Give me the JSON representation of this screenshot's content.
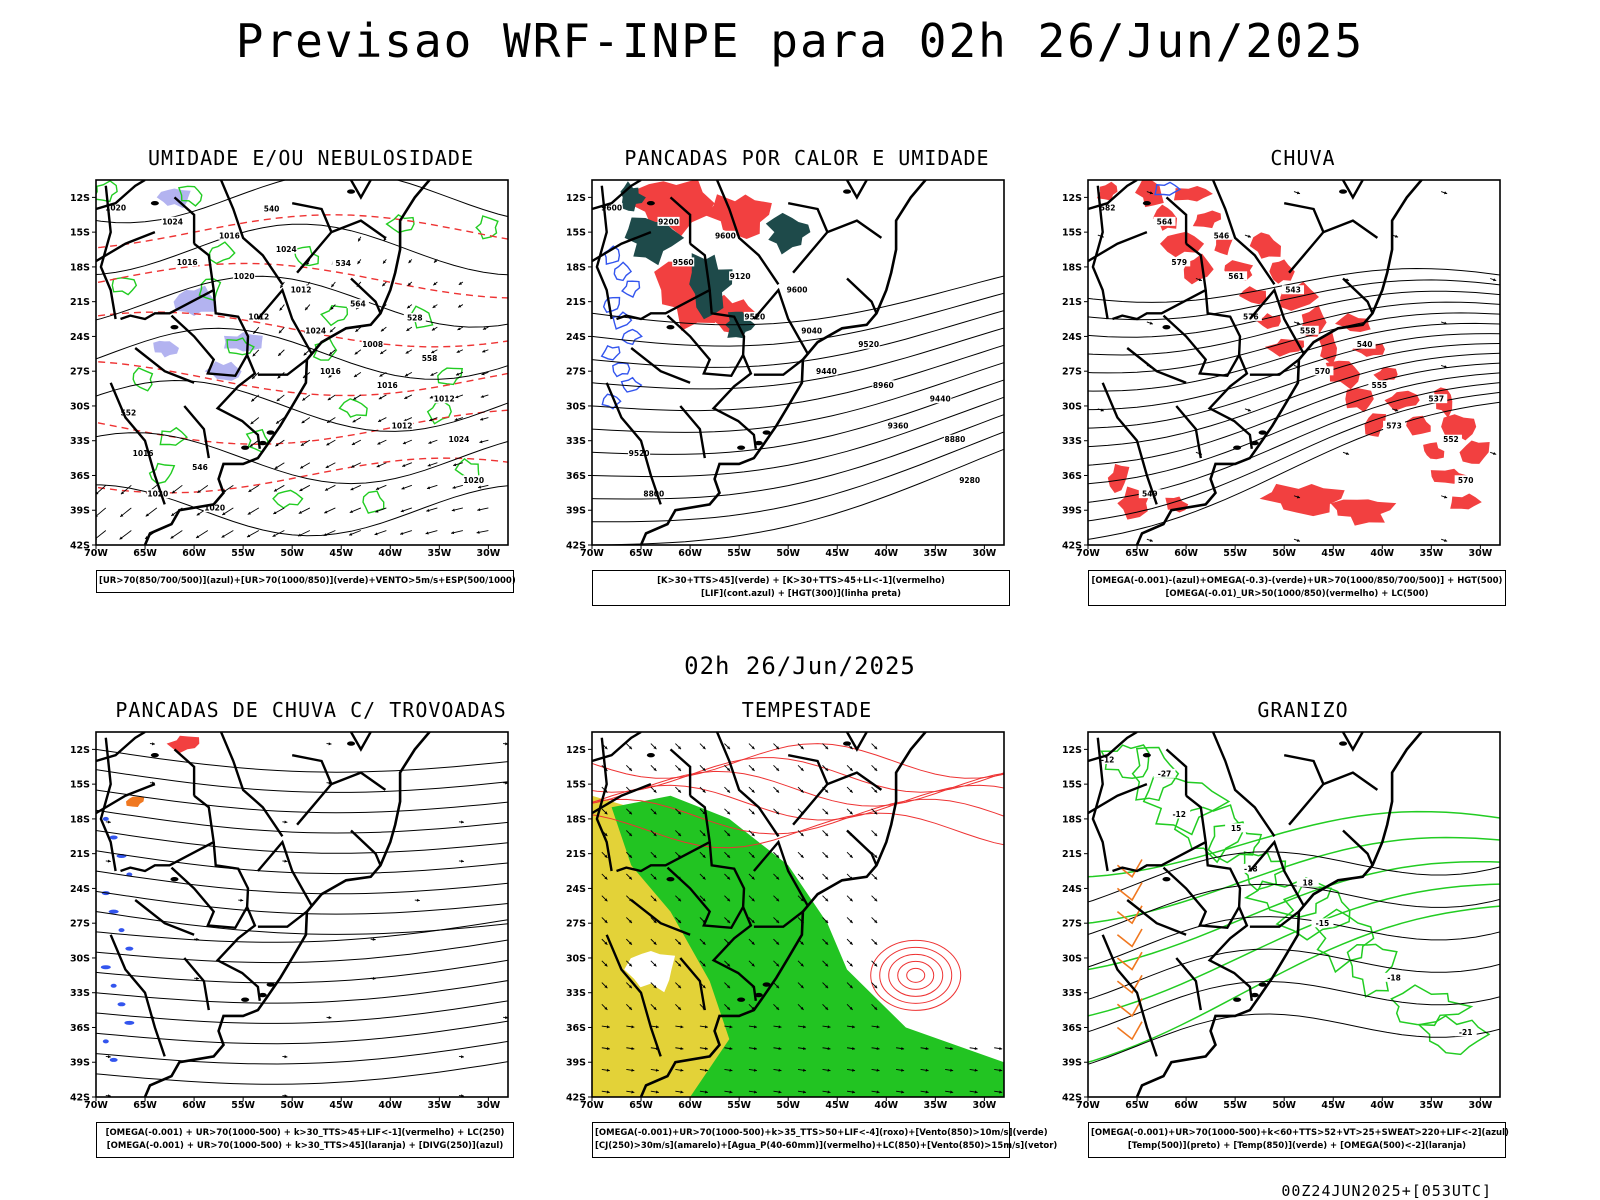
{
  "page": {
    "title": "Previsao WRF-INPE  para 02h 26/Jun/2025",
    "mid_title": "02h 26/Jun/2025",
    "footer": "00Z24JUN2025+[053UTC]"
  },
  "axes": {
    "lat_labels": [
      "12S",
      "15S",
      "18S",
      "21S",
      "24S",
      "27S",
      "30S",
      "33S",
      "36S",
      "39S",
      "42S"
    ],
    "lon_labels": [
      "70W",
      "65W",
      "60W",
      "55W",
      "50W",
      "45W",
      "40W",
      "35W",
      "30W"
    ]
  },
  "colors": {
    "humidity_blue": "#b3b3f0",
    "humidity_green": "#22cc22",
    "red_fill": "#f24040",
    "dark_teal": "#1e4a4a",
    "blue_contour": "#3355ee",
    "yellow_fill": "#e3d238",
    "green_fill": "#22c422",
    "orange": "#f07820",
    "red_contour": "#ee3333"
  },
  "panels": [
    {
      "id": "umidade",
      "title": "UMIDADE E/OU NEBULOSIDADE",
      "legend": [
        "[UR>70(850/700/500)](azul)+[UR>70(1000/850)](verde)+VENTO>5m/s+ESP(500/1000)"
      ],
      "contour_labels": [
        "1020",
        "1016",
        "1012",
        "1016",
        "1012",
        "1020",
        "1024",
        "1020",
        "1024",
        "1016",
        "1024",
        "1020",
        "1016",
        "1012",
        "1008",
        "1012",
        "1016",
        "1020",
        "1024",
        "564",
        "558",
        "552",
        "546",
        "540",
        "534",
        "528"
      ]
    },
    {
      "id": "pancadas_calor",
      "title": "PANCADAS POR CALOR E UMIDADE",
      "legend": [
        "[K>30+TTS>45](verde) + [K>30+TTS>45+LI<-1](vermelho)",
        "[LIF](cont.azul) + [HGT(300)](linha preta)"
      ],
      "contour_labels": [
        "9600",
        "9560",
        "9520",
        "9440",
        "9360",
        "9280",
        "9200",
        "9120",
        "9040",
        "8960",
        "8880",
        "8800",
        "9600",
        "9600",
        "9520",
        "9440",
        "9520"
      ]
    },
    {
      "id": "chuva",
      "title": "CHUVA",
      "legend": [
        "[OMEGA(-0.001)-(azul)+OMEGA(-0.3)-(verde)+UR>70(1000/850/700/500)] + HGT(500)",
        "[OMEGA(-0.01)_UR>50(1000/850)(vermelho) + LC(500)"
      ],
      "contour_labels": [
        "582",
        "579",
        "576",
        "570",
        "573",
        "570",
        "564",
        "561",
        "558",
        "555",
        "552",
        "549",
        "546",
        "543",
        "540",
        "537"
      ]
    },
    {
      "id": "pancadas_trovoadas",
      "title": "PANCADAS DE CHUVA C/ TROVOADAS",
      "legend": [
        "[OMEGA(-0.001) + UR>70(1000-500) + k>30_TTS>45+LIF<-1](vermelho) + LC(250)",
        "[OMEGA(-0.001) + UR>70(1000-500) + k>30_TTS>45](laranja) + [DIVG(250)](azul)"
      ],
      "contour_labels": []
    },
    {
      "id": "tempestade",
      "title": "TEMPESTADE",
      "legend": [
        "[OMEGA(-0.001)+UR>70(1000-500)+k>35_TTS>50+LIF<-4](roxo)+[Vento(850)>10m/s](verde)",
        "[CJ(250)>30m/s](amarelo)+[Agua_P(40-60mm)](vermelho)+LC(850)+[Vento(850)>15m/s](vetor)"
      ],
      "contour_labels": []
    },
    {
      "id": "granizo",
      "title": "GRANIZO",
      "legend": [
        "[OMEGA(-0.001)+UR>70(1000-500)+k<60+TTS>52+VT>25+SWEAT>220+LIF<-2](azul)",
        "[Temp(500)](preto) + [Temp(850)](verde) + [OMEGA(500)<-2](laranja)"
      ],
      "contour_labels": [
        "-12",
        "-12",
        "-18",
        "-15",
        "-18",
        "-21",
        "-27",
        "15",
        "18"
      ]
    }
  ]
}
